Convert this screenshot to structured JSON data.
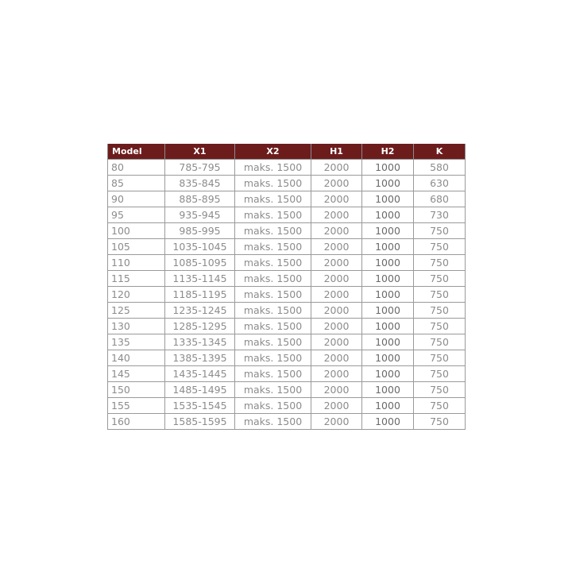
{
  "colors": {
    "header_bg": "#6d1c1c",
    "header_text": "#ffffff",
    "cell_text": "#8c8c8c"
  },
  "table": {
    "headers": [
      "Model",
      "X1",
      "X2",
      "H1",
      "H2",
      "K"
    ],
    "rows": [
      [
        "80",
        "785-795",
        "maks. 1500",
        "2000",
        "1000",
        "580"
      ],
      [
        "85",
        "835-845",
        "maks. 1500",
        "2000",
        "1000",
        "630"
      ],
      [
        "90",
        "885-895",
        "maks. 1500",
        "2000",
        "1000",
        "680"
      ],
      [
        "95",
        "935-945",
        "maks. 1500",
        "2000",
        "1000",
        "730"
      ],
      [
        "100",
        "985-995",
        "maks. 1500",
        "2000",
        "1000",
        "750"
      ],
      [
        "105",
        "1035-1045",
        "maks. 1500",
        "2000",
        "1000",
        "750"
      ],
      [
        "110",
        "1085-1095",
        "maks. 1500",
        "2000",
        "1000",
        "750"
      ],
      [
        "115",
        "1135-1145",
        "maks. 1500",
        "2000",
        "1000",
        "750"
      ],
      [
        "120",
        "1185-1195",
        "maks. 1500",
        "2000",
        "1000",
        "750"
      ],
      [
        "125",
        "1235-1245",
        "maks. 1500",
        "2000",
        "1000",
        "750"
      ],
      [
        "130",
        "1285-1295",
        "maks. 1500",
        "2000",
        "1000",
        "750"
      ],
      [
        "135",
        "1335-1345",
        "maks. 1500",
        "2000",
        "1000",
        "750"
      ],
      [
        "140",
        "1385-1395",
        "maks. 1500",
        "2000",
        "1000",
        "750"
      ],
      [
        "145",
        "1435-1445",
        "maks. 1500",
        "2000",
        "1000",
        "750"
      ],
      [
        "150",
        "1485-1495",
        "maks. 1500",
        "2000",
        "1000",
        "750"
      ],
      [
        "155",
        "1535-1545",
        "maks. 1500",
        "2000",
        "1000",
        "750"
      ],
      [
        "160",
        "1585-1595",
        "maks. 1500",
        "2000",
        "1000",
        "750"
      ]
    ]
  }
}
